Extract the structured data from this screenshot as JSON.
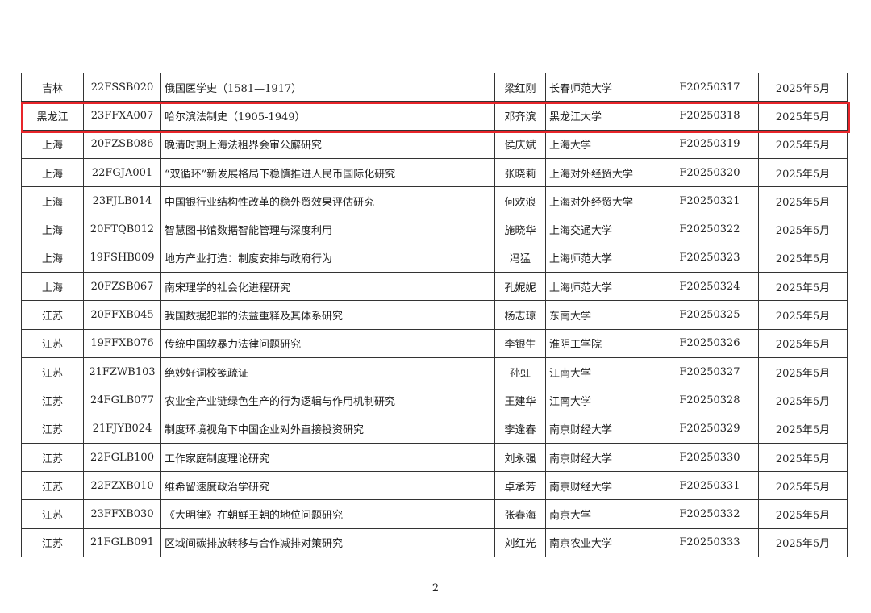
{
  "rows": [
    [
      "吉林",
      "22FSSB020",
      "俄国医学史（1581—1917）",
      "梁红刚",
      "长春师范大学",
      "F20250317",
      "2025年5月"
    ],
    [
      "黑龙江",
      "23FFXA007",
      "哈尔滨法制史（1905-1949）",
      "邓齐滨",
      "黑龙江大学",
      "F20250318",
      "2025年5月"
    ],
    [
      "上海",
      "20FZSB086",
      "晚清时期上海法租界会审公廨研究",
      "侯庆斌",
      "上海大学",
      "F20250319",
      "2025年5月"
    ],
    [
      "上海",
      "22FGJA001",
      "“双循环”新发展格局下稳慎推进人民币国际化研究",
      "张晓莉",
      "上海对外经贸大学",
      "F20250320",
      "2025年5月"
    ],
    [
      "上海",
      "23FJLB014",
      "中国银行业结构性改革的稳外贸效果评估研究",
      "何欢浪",
      "上海对外经贸大学",
      "F20250321",
      "2025年5月"
    ],
    [
      "上海",
      "20FTQB012",
      "智慧图书馆数据智能管理与深度利用",
      "施晓华",
      "上海交通大学",
      "F20250322",
      "2025年5月"
    ],
    [
      "上海",
      "19FSHB009",
      "地方产业打造：制度安排与政府行为",
      "冯猛",
      "上海师范大学",
      "F20250323",
      "2025年5月"
    ],
    [
      "上海",
      "20FZSB067",
      "南宋理学的社会化进程研究",
      "孔妮妮",
      "上海师范大学",
      "F20250324",
      "2025年5月"
    ],
    [
      "江苏",
      "20FFXB045",
      "我国数据犯罪的法益重释及其体系研究",
      "杨志琼",
      "东南大学",
      "F20250325",
      "2025年5月"
    ],
    [
      "江苏",
      "19FFXB076",
      "传统中国软暴力法律问题研究",
      "李银生",
      "淮阴工学院",
      "F20250326",
      "2025年5月"
    ],
    [
      "江苏",
      "21FZWB103",
      "绝妙好词校笺疏证",
      "孙虹",
      "江南大学",
      "F20250327",
      "2025年5月"
    ],
    [
      "江苏",
      "24FGLB077",
      "农业全产业链绿色生产的行为逻辑与作用机制研究",
      "王建华",
      "江南大学",
      "F20250328",
      "2025年5月"
    ],
    [
      "江苏",
      "21FJYB024",
      "制度环境视角下中国企业对外直接投资研究",
      "李逢春",
      "南京财经大学",
      "F20250329",
      "2025年5月"
    ],
    [
      "江苏",
      "22FGLB100",
      "工作家庭制度理论研究",
      "刘永强",
      "南京财经大学",
      "F20250330",
      "2025年5月"
    ],
    [
      "江苏",
      "22FZXB010",
      "维希留速度政治学研究",
      "卓承芳",
      "南京财经大学",
      "F20250331",
      "2025年5月"
    ],
    [
      "江苏",
      "23FFXB030",
      "《大明律》在朝鲜王朝的地位问题研究",
      "张春海",
      "南京大学",
      "F20250332",
      "2025年5月"
    ],
    [
      "江苏",
      "21FGLB091",
      "区域间碳排放转移与合作减排对策研究",
      "刘红光",
      "南京农业大学",
      "F20250333",
      "2025年5月"
    ]
  ],
  "highlighted_row": 1,
  "highlight_color": "#e8252a",
  "page_number": "2"
}
